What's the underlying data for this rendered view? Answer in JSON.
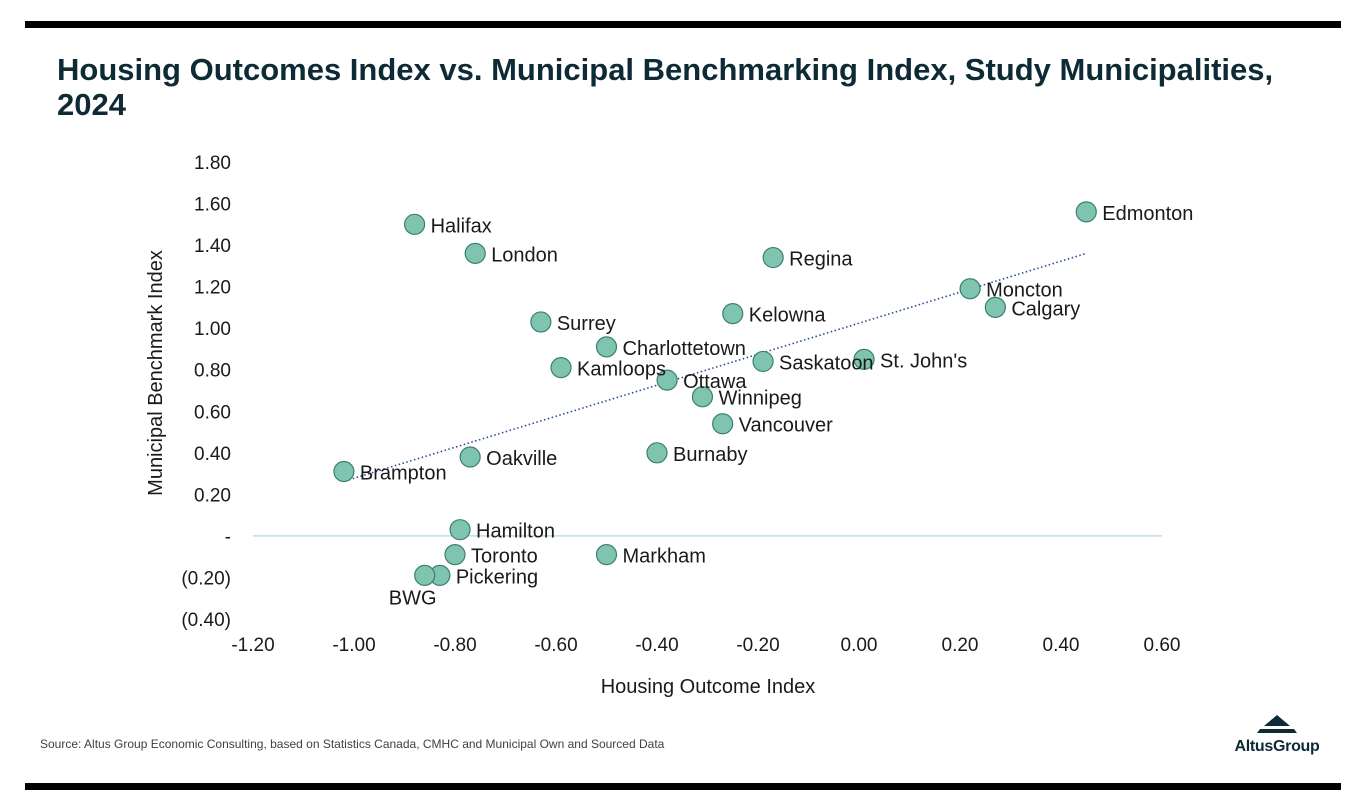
{
  "header": {
    "title": "Housing Outcomes Index vs. Municipal Benchmarking Index, Study Municipalities, 2024"
  },
  "footer": {
    "source": "Source:  Altus Group Economic Consulting, based on Statistics Canada, CMHC and Municipal Own and Sourced Data",
    "logo_text": "AltusGroup"
  },
  "chart_data": {
    "type": "scatter",
    "xlabel": "Housing Outcome Index",
    "ylabel": "Municipal Benchmark Index",
    "xlim": [
      -1.2,
      0.6
    ],
    "ylim": [
      -0.4,
      1.8
    ],
    "x_ticks": [
      {
        "value": -1.2,
        "label": "-1.20"
      },
      {
        "value": -1.0,
        "label": "-1.00"
      },
      {
        "value": -0.8,
        "label": "-0.80"
      },
      {
        "value": -0.6,
        "label": "-0.60"
      },
      {
        "value": -0.4,
        "label": "-0.40"
      },
      {
        "value": -0.2,
        "label": "-0.20"
      },
      {
        "value": 0.0,
        "label": "0.00"
      },
      {
        "value": 0.2,
        "label": "0.20"
      },
      {
        "value": 0.4,
        "label": "0.40"
      },
      {
        "value": 0.6,
        "label": "0.60"
      }
    ],
    "y_ticks": [
      {
        "value": 1.8,
        "label": "1.80"
      },
      {
        "value": 1.6,
        "label": "1.60"
      },
      {
        "value": 1.4,
        "label": "1.40"
      },
      {
        "value": 1.2,
        "label": "1.20"
      },
      {
        "value": 1.0,
        "label": "1.00"
      },
      {
        "value": 0.8,
        "label": "0.80"
      },
      {
        "value": 0.6,
        "label": "0.60"
      },
      {
        "value": 0.4,
        "label": "0.40"
      },
      {
        "value": 0.2,
        "label": "0.20"
      },
      {
        "value": 0.0,
        "label": "-"
      },
      {
        "value": -0.2,
        "label": "(0.20)"
      },
      {
        "value": -0.4,
        "label": "(0.40)"
      }
    ],
    "grid": false,
    "zero_line": true,
    "trendline": {
      "style": "dotted",
      "x": [
        -1.01,
        0.45
      ],
      "y": [
        0.27,
        1.36
      ]
    },
    "colors": {
      "marker_fill": "#7fc4ae",
      "marker_stroke": "#3b7f70",
      "trendline": "#2b4a9e",
      "zero_line": "#c5dbe6",
      "text": "#1a1a1a"
    },
    "points": [
      {
        "name": "Edmonton",
        "x": 0.45,
        "y": 1.56,
        "label_side": "right"
      },
      {
        "name": "Halifax",
        "x": -0.88,
        "y": 1.5,
        "label_side": "right"
      },
      {
        "name": "London",
        "x": -0.76,
        "y": 1.36,
        "label_side": "right"
      },
      {
        "name": "Regina",
        "x": -0.17,
        "y": 1.34,
        "label_side": "right"
      },
      {
        "name": "Moncton",
        "x": 0.22,
        "y": 1.19,
        "label_side": "right"
      },
      {
        "name": "Calgary",
        "x": 0.27,
        "y": 1.1,
        "label_side": "right"
      },
      {
        "name": "Kelowna",
        "x": -0.25,
        "y": 1.07,
        "label_side": "right"
      },
      {
        "name": "Surrey",
        "x": -0.63,
        "y": 1.03,
        "label_side": "right"
      },
      {
        "name": "Charlottetown",
        "x": -0.5,
        "y": 0.91,
        "label_side": "right"
      },
      {
        "name": "Saskatoon",
        "x": -0.19,
        "y": 0.84,
        "label_side": "right"
      },
      {
        "name": "St. John's",
        "x": 0.01,
        "y": 0.85,
        "label_side": "right"
      },
      {
        "name": "Kamloops",
        "x": -0.59,
        "y": 0.81,
        "label_side": "right"
      },
      {
        "name": "Ottawa",
        "x": -0.38,
        "y": 0.75,
        "label_side": "right"
      },
      {
        "name": "Winnipeg",
        "x": -0.31,
        "y": 0.67,
        "label_side": "right"
      },
      {
        "name": "Vancouver",
        "x": -0.27,
        "y": 0.54,
        "label_side": "right"
      },
      {
        "name": "Burnaby",
        "x": -0.4,
        "y": 0.4,
        "label_side": "right"
      },
      {
        "name": "Oakville",
        "x": -0.77,
        "y": 0.38,
        "label_side": "right"
      },
      {
        "name": "Brampton",
        "x": -1.02,
        "y": 0.31,
        "label_side": "right"
      },
      {
        "name": "Hamilton",
        "x": -0.79,
        "y": 0.03,
        "label_side": "right"
      },
      {
        "name": "Toronto",
        "x": -0.8,
        "y": -0.09,
        "label_side": "right"
      },
      {
        "name": "Markham",
        "x": -0.5,
        "y": -0.09,
        "label_side": "right"
      },
      {
        "name": "Pickering",
        "x": -0.83,
        "y": -0.19,
        "label_side": "right"
      },
      {
        "name": "BWG",
        "x": -0.86,
        "y": -0.19,
        "label_side": "below"
      }
    ]
  }
}
